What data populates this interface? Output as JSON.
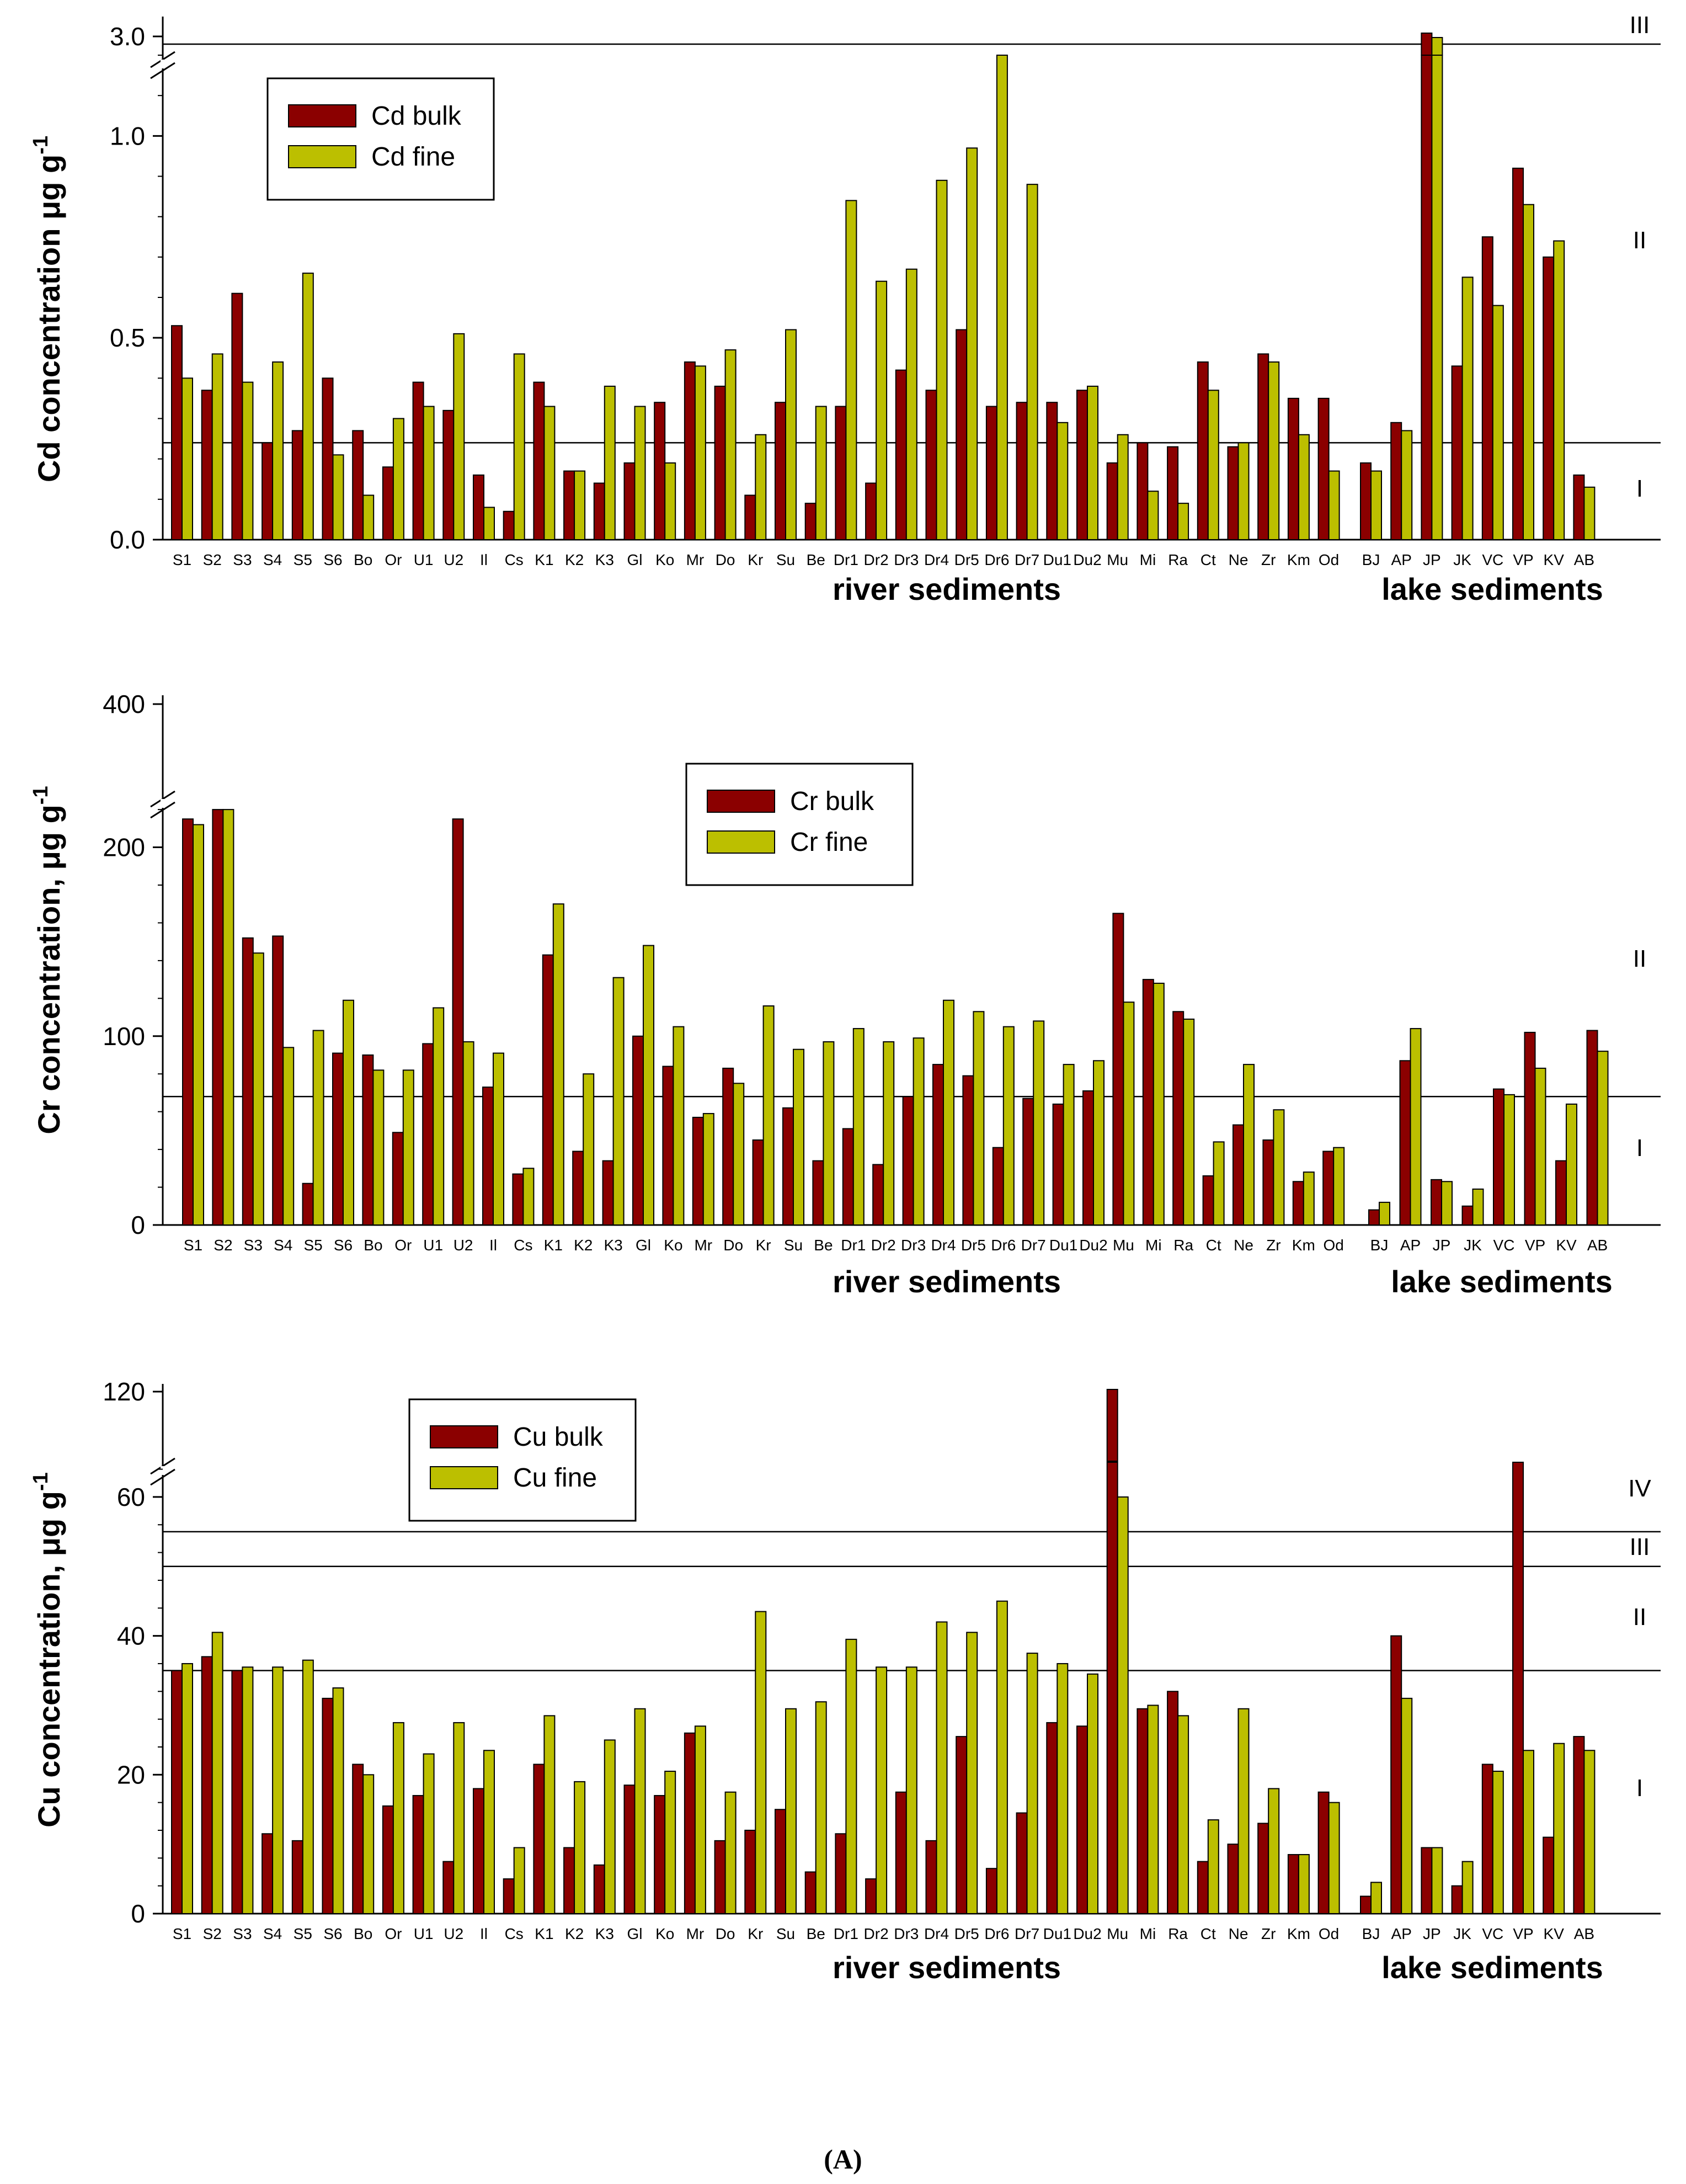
{
  "caption": "(A)",
  "colors": {
    "bulk": "#8b0000",
    "fine": "#bcbf00",
    "line": "#000000"
  },
  "sites": {
    "river_cd": [
      "S1",
      "S2",
      "S3",
      "S4",
      "S5",
      "S6",
      "Bo",
      "Or",
      "U1",
      "U2",
      "Il",
      "Cs",
      "K1",
      "K2",
      "K3",
      "Gl",
      "Ko",
      "Mr",
      "Do",
      "Kr",
      "Su",
      "Be",
      "Dr1",
      "Dr2",
      "Dr3",
      "Dr4",
      "Dr5",
      "Dr6",
      "Dr7",
      "Du1",
      "Du2",
      "Mu",
      "Mi",
      "Ra",
      "Ct",
      "Ne",
      "Zr",
      "Km",
      "Od"
    ],
    "river_crcu": [
      "S1",
      "S2",
      "S3",
      "S4",
      "S5",
      "S6",
      "Bo",
      "Or",
      "U1",
      "U2",
      "Il",
      "Cs",
      "K1",
      "K2",
      "K3",
      "Gl",
      "Ko",
      "Mr",
      "Do",
      "Kr",
      "Su",
      "Be",
      "Dr1",
      "Dr2",
      "Dr3",
      "Dr4",
      "Dr5",
      "Dr6",
      "Dr7",
      "Du1",
      "Du2",
      "Mu",
      "Mi",
      "Ra",
      "Ct",
      "Ne",
      "Zr",
      "Km",
      "Od"
    ],
    "lake": [
      "BJ",
      "AP",
      "JP",
      "JK",
      "VC",
      "VP",
      "KV",
      "AB"
    ]
  },
  "chart_data": [
    {
      "type": "bar",
      "id": "cd",
      "ylabel": "Cd concentration μg g",
      "ylabel_sup": "-1",
      "legend": [
        "Cd bulk",
        "Cd fine"
      ],
      "group_labels": [
        "river sediments",
        "lake sediments"
      ],
      "yticks": [
        "0.0",
        "0.5",
        "1.0",
        "3.0"
      ],
      "ylim_lower": [
        0,
        1.2
      ],
      "ylim_upper": [
        2.9,
        3.05
      ],
      "thresholds": [
        0.24,
        2.95
      ],
      "class_labels": [
        "I",
        "II",
        "III"
      ],
      "series": [
        {
          "name": "Cd bulk",
          "river": [
            0.53,
            0.37,
            0.61,
            0.24,
            0.27,
            0.4,
            0.27,
            0.18,
            0.39,
            0.32,
            0.16,
            0.07,
            0.39,
            0.17,
            0.14,
            0.19,
            0.34,
            0.44,
            0.38,
            0.11,
            0.34,
            0.09,
            0.33,
            0.14,
            0.42,
            0.37,
            0.52,
            0.33,
            0.34,
            0.34,
            0.37,
            0.19,
            0.24,
            0.23,
            0.44,
            0.23,
            0.46,
            0.35,
            0.35
          ],
          "lake": [
            0.19,
            0.29,
            3.0,
            0.43,
            0.75,
            0.92,
            0.7,
            0.16
          ]
        },
        {
          "name": "Cd fine",
          "river": [
            0.4,
            0.46,
            0.39,
            0.44,
            0.66,
            0.21,
            0.11,
            0.3,
            0.33,
            0.51,
            0.08,
            0.46,
            0.33,
            0.17,
            0.38,
            0.33,
            0.19,
            0.43,
            0.47,
            0.26,
            0.52,
            0.33,
            0.84,
            0.64,
            0.67,
            0.89,
            0.97,
            1.2,
            0.88,
            0.29,
            0.38,
            0.26,
            0.12,
            0.09,
            0.37,
            0.24,
            0.44,
            0.26,
            0.17
          ],
          "lake": [
            0.17,
            0.27,
            2.98,
            0.65,
            0.58,
            0.83,
            0.74,
            0.13
          ]
        }
      ]
    },
    {
      "type": "bar",
      "id": "cr",
      "ylabel": "Cr concentration, μg g",
      "ylabel_sup": "-1",
      "legend": [
        "Cr bulk",
        "Cr fine"
      ],
      "group_labels": [
        "river sediments",
        "lake sediments"
      ],
      "yticks": [
        "0",
        "100",
        "200",
        "400"
      ],
      "ylim_lower": [
        0,
        225
      ],
      "ylim_upper": [
        380,
        400
      ],
      "thresholds": [
        68
      ],
      "class_labels": [
        "I",
        "II"
      ],
      "series": [
        {
          "name": "Cr bulk",
          "river": [
            215,
            220,
            152,
            153,
            22,
            91,
            90,
            49,
            96,
            215,
            73,
            27,
            143,
            39,
            34,
            100,
            84,
            57,
            83,
            45,
            62,
            34,
            51,
            32,
            68,
            85,
            79,
            41,
            67,
            64,
            71,
            165,
            130,
            113,
            26,
            53,
            45,
            23,
            39
          ],
          "lake": [
            8,
            87,
            24,
            10,
            72,
            102,
            34,
            103
          ]
        },
        {
          "name": "Cr fine",
          "river": [
            212,
            220,
            144,
            94,
            103,
            119,
            82,
            82,
            115,
            97,
            91,
            30,
            170,
            80,
            131,
            148,
            105,
            59,
            75,
            116,
            93,
            97,
            104,
            97,
            99,
            119,
            113,
            105,
            108,
            85,
            87,
            118,
            128,
            109,
            44,
            85,
            61,
            28,
            41
          ],
          "lake": [
            12,
            104,
            23,
            19,
            69,
            83,
            64,
            92
          ]
        }
      ]
    },
    {
      "type": "bar",
      "id": "cu",
      "ylabel": "Cu concentration, μg g",
      "ylabel_sup": "-1",
      "legend": [
        "Cu bulk",
        "Cu fine"
      ],
      "group_labels": [
        "river sediments",
        "lake sediments"
      ],
      "yticks": [
        "0",
        "20",
        "40",
        "60",
        "120"
      ],
      "ylim_lower": [
        0,
        65
      ],
      "ylim_upper": [
        115,
        120
      ],
      "thresholds": [
        35,
        50,
        55
      ],
      "class_labels": [
        "I",
        "II",
        "III",
        "IV"
      ],
      "series": [
        {
          "name": "Cu bulk",
          "river": [
            35,
            37,
            35,
            11.5,
            10.5,
            31,
            21.5,
            15.5,
            17,
            7.5,
            18,
            5,
            21.5,
            9.5,
            7,
            18.5,
            17,
            26,
            10.5,
            12,
            15,
            6,
            11.5,
            5,
            17.5,
            10.5,
            25.5,
            6.5,
            14.5,
            27.5,
            27,
            120,
            29.5,
            32,
            7.5,
            10,
            13,
            8.5,
            17.5
          ],
          "lake": [
            2.5,
            40,
            9.5,
            4,
            21.5,
            65,
            11,
            25.5
          ]
        },
        {
          "name": "Cu fine",
          "river": [
            36,
            40.5,
            35.5,
            35.5,
            36.5,
            32.5,
            20,
            27.5,
            23,
            27.5,
            23.5,
            9.5,
            28.5,
            19,
            25,
            29.5,
            20.5,
            27,
            17.5,
            43.5,
            29.5,
            30.5,
            39.5,
            35.5,
            35.5,
            42,
            40.5,
            45,
            37.5,
            36,
            34.5,
            60,
            30,
            28.5,
            13.5,
            29.5,
            18,
            8.5,
            16
          ],
          "lake": [
            4.5,
            31,
            9.5,
            7.5,
            20.5,
            23.5,
            24.5,
            23.5
          ]
        }
      ]
    }
  ]
}
